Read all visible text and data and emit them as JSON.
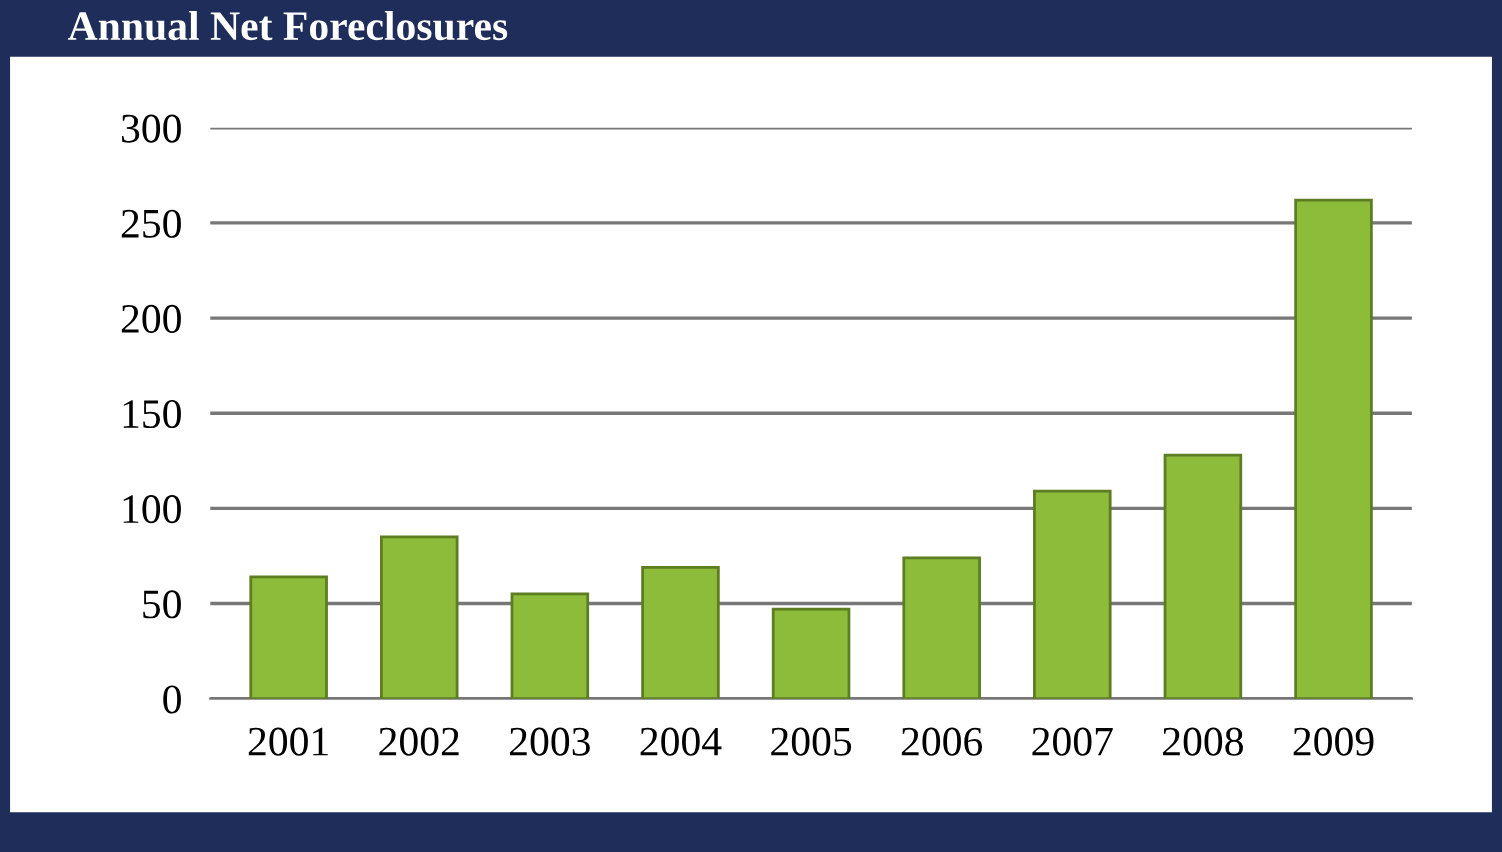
{
  "chart_data": {
    "type": "bar",
    "title": "Annual Net Foreclosures",
    "categories": [
      "2001",
      "2002",
      "2003",
      "2004",
      "2005",
      "2006",
      "2007",
      "2008",
      "2009"
    ],
    "values": [
      64,
      85,
      55,
      69,
      47,
      74,
      109,
      128,
      262
    ],
    "color": "#8dbb3a",
    "ylim": [
      0,
      300
    ],
    "yticks": [
      0,
      50,
      100,
      150,
      200,
      250,
      300
    ],
    "grid": "y"
  }
}
